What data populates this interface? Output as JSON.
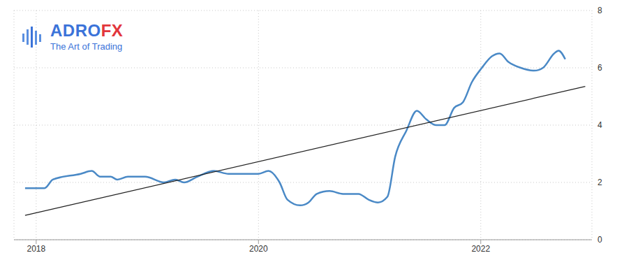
{
  "chart_data": {
    "type": "line",
    "annotations": [
      {
        "text": "ADRO",
        "color": "#3b73d9"
      },
      {
        "text": "FX",
        "color": "#e2363c"
      },
      {
        "text": "The Art of Trading",
        "color": "#3b73d9"
      }
    ],
    "x": [
      2017.9,
      2018.075,
      2018.15,
      2018.4,
      2018.5,
      2018.575,
      2018.67,
      2018.73,
      2018.825,
      2018.98,
      2019.15,
      2019.25,
      2019.33,
      2019.45,
      2019.6,
      2019.73,
      2019.89,
      2020.0,
      2020.09,
      2020.19,
      2020.26,
      2020.375,
      2020.45,
      2020.525,
      2020.64,
      2020.76,
      2020.9,
      2020.99,
      2021.075,
      2021.16,
      2021.23,
      2021.33,
      2021.425,
      2021.51,
      2021.6,
      2021.675,
      2021.76,
      2021.84,
      2021.92,
      2022.01,
      2022.1,
      2022.17,
      2022.25,
      2022.36,
      2022.48,
      2022.56,
      2022.66,
      2022.7,
      2022.76,
      2022.94
    ],
    "series": [
      {
        "color": "#4a89c6",
        "line_style": "solid",
        "values": [
          1.8,
          1.8,
          2.1,
          2.3,
          2.4,
          2.2,
          2.2,
          2.1,
          2.2,
          2.2,
          2.0,
          2.1,
          2.0,
          2.2,
          2.4,
          2.3,
          2.3,
          2.3,
          2.4,
          2.0,
          1.4,
          1.2,
          1.3,
          1.6,
          1.7,
          1.6,
          1.6,
          1.4,
          1.3,
          1.5,
          2.9,
          3.8,
          4.5,
          4.2,
          4.0,
          4.0,
          4.6,
          4.8,
          5.5,
          6.0,
          6.4,
          6.5,
          6.2,
          6.0,
          5.9,
          6.0,
          6.5,
          6.6,
          6.3,
          null
        ]
      },
      {
        "color": "#222222",
        "line_style": "solid",
        "values": [
          0.85,
          null,
          null,
          null,
          null,
          null,
          null,
          null,
          null,
          null,
          null,
          null,
          null,
          null,
          null,
          null,
          null,
          null,
          null,
          null,
          null,
          null,
          null,
          null,
          null,
          null,
          null,
          null,
          null,
          null,
          null,
          null,
          null,
          null,
          null,
          null,
          null,
          null,
          null,
          null,
          null,
          null,
          null,
          null,
          null,
          null,
          null,
          null,
          null,
          5.35
        ]
      }
    ],
    "xlim": [
      2017.8,
      2023.0
    ],
    "xticks": [
      2018,
      2020,
      2022
    ],
    "ylim": [
      0,
      8
    ],
    "yticks": [
      0,
      2,
      4,
      6,
      8
    ],
    "grid": true
  }
}
